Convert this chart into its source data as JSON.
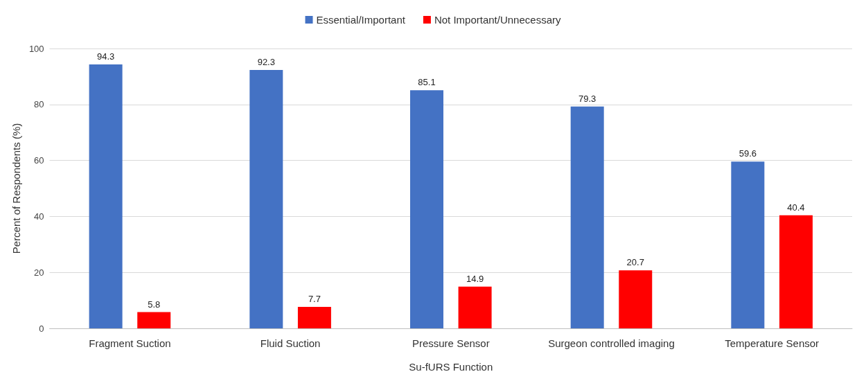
{
  "chart_data": {
    "type": "bar",
    "xlabel": "Su-fURS Function",
    "ylabel": "Percent of Respondents (%)",
    "categories": [
      "Fragment Suction",
      "Fluid Suction",
      "Pressure Sensor",
      "Surgeon controlled imaging",
      "Temperature Sensor"
    ],
    "series": [
      {
        "name": "Essential/Important",
        "color": "#4472c4",
        "values": [
          94.3,
          92.3,
          85.1,
          79.3,
          59.6
        ]
      },
      {
        "name": "Not Important/Unnecessary",
        "color": "#ff0000",
        "values": [
          5.8,
          7.7,
          14.9,
          20.7,
          40.4
        ]
      }
    ],
    "ylim": [
      0,
      100
    ],
    "yticks": [
      0,
      20,
      40,
      60,
      80,
      100
    ],
    "grid": "y",
    "legend": "top",
    "data_labels": true
  }
}
